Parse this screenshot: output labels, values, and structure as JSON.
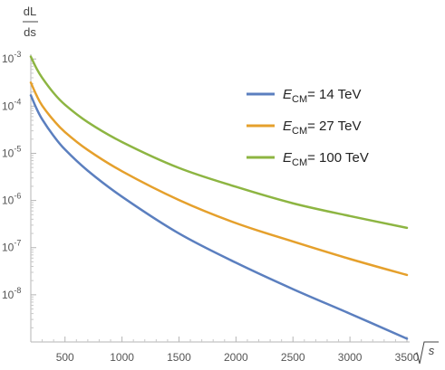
{
  "chart_data": {
    "type": "line",
    "title": "",
    "ylabel_numerator": "dL",
    "ylabel_denominator": "ds",
    "xlabel_text": "s",
    "xlim": [
      200,
      3500
    ],
    "ylim_log10": [
      -9,
      -2.9
    ],
    "y_scale": "log",
    "x_ticks": [
      500,
      1000,
      1500,
      2000,
      2500,
      3000,
      3500
    ],
    "y_ticks": [
      {
        "base": "10",
        "exp": "-3",
        "value": -3
      },
      {
        "base": "10",
        "exp": "-4",
        "value": -4
      },
      {
        "base": "10",
        "exp": "-5",
        "value": -5
      },
      {
        "base": "10",
        "exp": "-6",
        "value": -6
      },
      {
        "base": "10",
        "exp": "-7",
        "value": -7
      },
      {
        "base": "10",
        "exp": "-8",
        "value": -8
      }
    ],
    "grid": false,
    "legend_position": "top-right",
    "series": [
      {
        "name_main": "E",
        "name_sub": "CM",
        "name_rest": "= 14 TeV",
        "color": "#5B7FBF",
        "x": [
          200,
          250,
          300,
          400,
          500,
          700,
          1000,
          1500,
          2000,
          2500,
          3000,
          3500
        ],
        "log10_y": [
          -3.77,
          -4.05,
          -4.28,
          -4.63,
          -4.92,
          -5.37,
          -5.92,
          -6.7,
          -7.32,
          -7.88,
          -8.4,
          -8.93
        ]
      },
      {
        "name_main": "E",
        "name_sub": "CM",
        "name_rest": "= 27 TeV",
        "color": "#E5A02C",
        "x": [
          200,
          250,
          300,
          400,
          500,
          700,
          1000,
          1500,
          2000,
          2500,
          3000,
          3500
        ],
        "log10_y": [
          -3.5,
          -3.77,
          -3.99,
          -4.3,
          -4.55,
          -4.93,
          -5.38,
          -5.99,
          -6.48,
          -6.87,
          -7.24,
          -7.58
        ]
      },
      {
        "name_main": "E",
        "name_sub": "CM",
        "name_rest": "= 100 TeV",
        "color": "#8DB542",
        "x": [
          200,
          250,
          300,
          400,
          500,
          700,
          1000,
          1500,
          2000,
          2500,
          3000,
          3500
        ],
        "log10_y": [
          -2.95,
          -3.2,
          -3.4,
          -3.72,
          -3.97,
          -4.34,
          -4.76,
          -5.31,
          -5.71,
          -6.06,
          -6.33,
          -6.58
        ]
      }
    ]
  }
}
